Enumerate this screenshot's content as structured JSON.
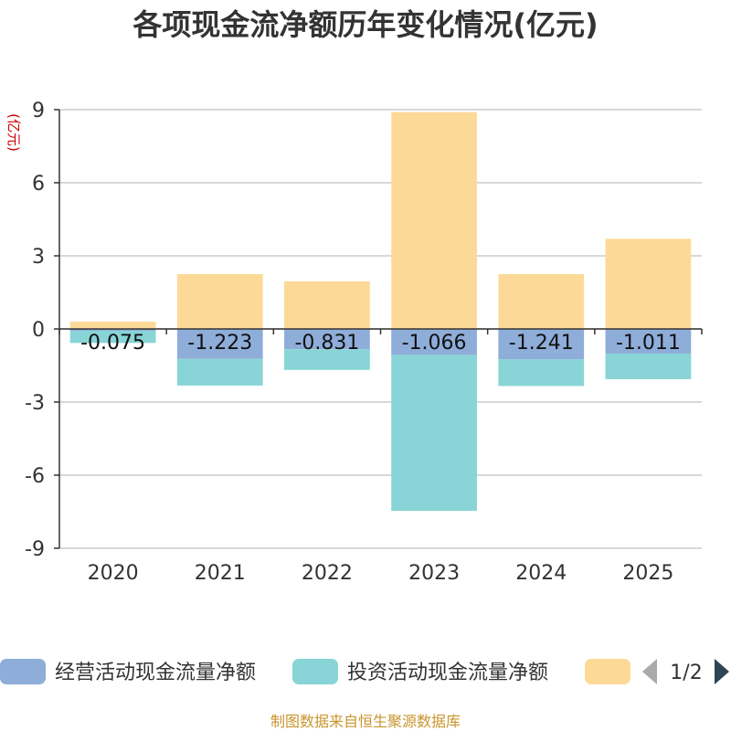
{
  "chart_data": {
    "type": "bar",
    "stacked": true,
    "title": "各项现金流净额历年变化情况(亿元)",
    "ylabel": "(亿元)",
    "ylim": [
      -9,
      9
    ],
    "yticks": [
      9,
      6,
      3,
      0,
      -3,
      -6,
      -9
    ],
    "grid": true,
    "categories": [
      "2020",
      "2021",
      "2022",
      "2023",
      "2024",
      "2025"
    ],
    "series": [
      {
        "name": "经营活动现金流量净额",
        "color": "#8eadd9",
        "values": [
          -0.075,
          -1.223,
          -0.831,
          -1.066,
          -1.241,
          -1.011
        ],
        "labels": [
          "-0.075",
          "-1.223",
          "-0.831",
          "-1.066",
          "-1.241",
          "-1.011"
        ]
      },
      {
        "name": "投资活动现金流量净额",
        "color": "#88d4d6",
        "values": [
          -0.5,
          -1.1,
          -0.85,
          -6.4,
          -1.1,
          -1.05
        ]
      },
      {
        "name": "",
        "color": "#fdd998",
        "values": [
          0.3,
          2.25,
          1.95,
          8.9,
          2.25,
          3.7
        ]
      }
    ],
    "legend": {
      "placement": "bottom",
      "page": "1/2"
    },
    "source": "制图数据来自恒生聚源数据库"
  }
}
